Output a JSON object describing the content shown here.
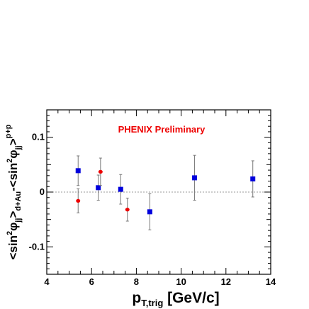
{
  "chart_data": {
    "type": "scatter",
    "annotation": "PHENIX Preliminary",
    "annotation_color": "#ee0000",
    "xlabel": {
      "main": "p",
      "sub": "T,trig",
      "unit": " [GeV/c]"
    },
    "ylabel": {
      "p1": "<sin",
      "s1": "2",
      "p2": "φ",
      "b1": "jj",
      "p3": ">",
      "b2": "d+Au",
      "p4": "-<sin",
      "s2": "2",
      "p5": "φ",
      "b3": "jj",
      "p6": ">",
      "s3": "p+p"
    },
    "xlim": [
      4,
      14
    ],
    "ylim": [
      -0.15,
      0.15
    ],
    "xticks": [
      4,
      6,
      8,
      10,
      12,
      14
    ],
    "yticks": [
      -0.1,
      0,
      0.1
    ],
    "ytick_labels": [
      "-0.1",
      "0",
      "0.1"
    ],
    "zero_line": "dotted",
    "series": [
      {
        "color": "#0000dd",
        "marker": "square",
        "points": [
          {
            "x": 5.4,
            "y": 0.039,
            "err": 0.027
          },
          {
            "x": 6.3,
            "y": 0.008,
            "err": 0.023
          },
          {
            "x": 7.3,
            "y": 0.005,
            "err": 0.027
          },
          {
            "x": 8.6,
            "y": -0.036,
            "err": 0.033
          },
          {
            "x": 10.6,
            "y": 0.026,
            "err": 0.041
          },
          {
            "x": 13.2,
            "y": 0.024,
            "err": 0.033
          }
        ]
      },
      {
        "color": "#ee0000",
        "marker": "circle",
        "points": [
          {
            "x": 5.4,
            "y": -0.016,
            "err": 0.022
          },
          {
            "x": 6.4,
            "y": 0.037,
            "err": 0.025
          },
          {
            "x": 7.6,
            "y": -0.032,
            "err": 0.021
          }
        ]
      }
    ]
  }
}
